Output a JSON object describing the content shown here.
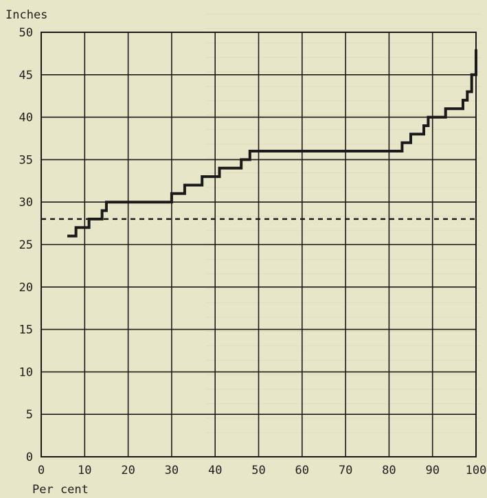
{
  "chart_data": {
    "type": "line",
    "ylabel": "Inches",
    "xlabel": "Per cent",
    "xlim": [
      0,
      100
    ],
    "ylim": [
      0,
      50
    ],
    "x_ticks": [
      0,
      10,
      20,
      30,
      40,
      50,
      60,
      70,
      80,
      90,
      100
    ],
    "y_ticks": [
      0,
      5,
      10,
      15,
      20,
      25,
      30,
      35,
      40,
      45,
      50
    ],
    "grid": true,
    "colors": {
      "paper": "#e8e6c8",
      "ink": "#1a1a1a"
    },
    "reference_line": {
      "y": 28,
      "style": "dashed"
    },
    "series": [
      {
        "style": "step",
        "points": [
          [
            6,
            26
          ],
          [
            8,
            26
          ],
          [
            8,
            27
          ],
          [
            11,
            27
          ],
          [
            11,
            28
          ],
          [
            14,
            28
          ],
          [
            14,
            29
          ],
          [
            15,
            29
          ],
          [
            15,
            30
          ],
          [
            30,
            30
          ],
          [
            30,
            31
          ],
          [
            33,
            31
          ],
          [
            33,
            32
          ],
          [
            37,
            32
          ],
          [
            37,
            33
          ],
          [
            41,
            33
          ],
          [
            41,
            34
          ],
          [
            46,
            34
          ],
          [
            46,
            35
          ],
          [
            48,
            35
          ],
          [
            48,
            36
          ],
          [
            83,
            36
          ],
          [
            83,
            37
          ],
          [
            85,
            37
          ],
          [
            85,
            38
          ],
          [
            88,
            38
          ],
          [
            88,
            39
          ],
          [
            89,
            39
          ],
          [
            89,
            40
          ],
          [
            93,
            40
          ],
          [
            93,
            41
          ],
          [
            97,
            41
          ],
          [
            97,
            42
          ],
          [
            98,
            42
          ],
          [
            98,
            43
          ],
          [
            99,
            43
          ],
          [
            99,
            45
          ],
          [
            100,
            45
          ],
          [
            100,
            48
          ]
        ]
      }
    ]
  }
}
